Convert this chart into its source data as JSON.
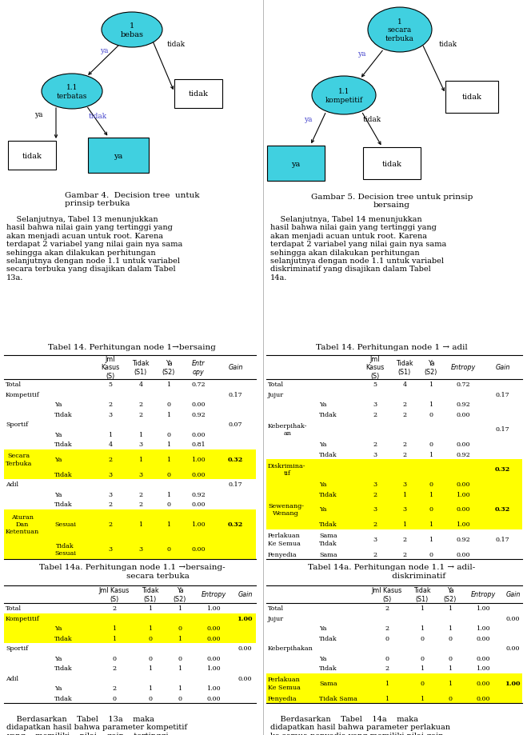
{
  "page_bg": "#ffffff",
  "fig_width": 6.59,
  "fig_height": 9.2,
  "left_table1_rows": [
    {
      "cells": [
        "Total",
        "",
        "5",
        "4",
        "1",
        "0.72",
        ""
      ],
      "highlight": false
    },
    {
      "cells": [
        "Kompetitif",
        "",
        "",
        "",
        "",
        "",
        "0.17"
      ],
      "highlight": false
    },
    {
      "cells": [
        "",
        "Ya",
        "2",
        "2",
        "0",
        "0.00",
        ""
      ],
      "highlight": false
    },
    {
      "cells": [
        "",
        "Tidak",
        "3",
        "2",
        "1",
        "0.92",
        ""
      ],
      "highlight": false
    },
    {
      "cells": [
        "Sportif",
        "",
        "",
        "",
        "",
        "",
        "0.07"
      ],
      "highlight": false
    },
    {
      "cells": [
        "",
        "Ya",
        "1",
        "1",
        "0",
        "0.00",
        ""
      ],
      "highlight": false
    },
    {
      "cells": [
        "",
        "Tidak",
        "4",
        "3",
        "1",
        "0.81",
        ""
      ],
      "highlight": false
    },
    {
      "cells": [
        "Secara\nTerbuka",
        "Ya",
        "2",
        "1",
        "1",
        "1.00",
        "0.32"
      ],
      "highlight": true,
      "gain_bold": true
    },
    {
      "cells": [
        "",
        "Tidak",
        "3",
        "3",
        "0",
        "0.00",
        ""
      ],
      "highlight": true
    },
    {
      "cells": [
        "Adil",
        "",
        "",
        "",
        "",
        "",
        "0.17"
      ],
      "highlight": false
    },
    {
      "cells": [
        "",
        "Ya",
        "3",
        "2",
        "1",
        "0.92",
        ""
      ],
      "highlight": false
    },
    {
      "cells": [
        "",
        "Tidak",
        "2",
        "2",
        "0",
        "0.00",
        ""
      ],
      "highlight": false
    },
    {
      "cells": [
        "Aturan\nDan\nKetentuan",
        "Sesuai",
        "2",
        "1",
        "1",
        "1.00",
        "0.32"
      ],
      "highlight": true,
      "gain_bold": true
    },
    {
      "cells": [
        "",
        "Tidak\nSesuai",
        "3",
        "3",
        "0",
        "0.00",
        ""
      ],
      "highlight": true
    }
  ],
  "left_table2_rows": [
    {
      "cells": [
        "Total",
        "",
        "2",
        "1",
        "1",
        "1.00",
        ""
      ],
      "highlight": false
    },
    {
      "cells": [
        "Kompetitif",
        "",
        "",
        "",
        "",
        "",
        "1.00"
      ],
      "highlight": true,
      "gain_bold": true
    },
    {
      "cells": [
        "",
        "Ya",
        "1",
        "1",
        "0",
        "0.00",
        ""
      ],
      "highlight": true
    },
    {
      "cells": [
        "",
        "Tidak",
        "1",
        "0",
        "1",
        "0.00",
        ""
      ],
      "highlight": true
    },
    {
      "cells": [
        "Sportif",
        "",
        "",
        "",
        "",
        "",
        "0.00"
      ],
      "highlight": false
    },
    {
      "cells": [
        "",
        "Ya",
        "0",
        "0",
        "0",
        "0.00",
        ""
      ],
      "highlight": false
    },
    {
      "cells": [
        "",
        "Tidak",
        "2",
        "1",
        "1",
        "1.00",
        ""
      ],
      "highlight": false
    },
    {
      "cells": [
        "Adil",
        "",
        "",
        "",
        "",
        "",
        "0.00"
      ],
      "highlight": false
    },
    {
      "cells": [
        "",
        "Ya",
        "2",
        "1",
        "1",
        "1.00",
        ""
      ],
      "highlight": false
    },
    {
      "cells": [
        "",
        "Tidak",
        "0",
        "0",
        "0",
        "0.00",
        ""
      ],
      "highlight": false
    }
  ],
  "right_table1_rows": [
    {
      "cells": [
        "Total",
        "",
        "5",
        "4",
        "1",
        "0.72",
        ""
      ],
      "highlight": false
    },
    {
      "cells": [
        "Jujur",
        "",
        "",
        "",
        "",
        "",
        "0.17"
      ],
      "highlight": false
    },
    {
      "cells": [
        "",
        "Ya",
        "3",
        "2",
        "1",
        "0.92",
        ""
      ],
      "highlight": false
    },
    {
      "cells": [
        "",
        "Tidak",
        "2",
        "2",
        "0",
        "0.00",
        ""
      ],
      "highlight": false
    },
    {
      "cells": [
        "Keberpihak-\nan",
        "",
        "",
        "",
        "",
        "",
        "0.17"
      ],
      "highlight": false
    },
    {
      "cells": [
        "",
        "Ya",
        "2",
        "2",
        "0",
        "0.00",
        ""
      ],
      "highlight": false
    },
    {
      "cells": [
        "",
        "Tidak",
        "3",
        "2",
        "1",
        "0.92",
        ""
      ],
      "highlight": false
    },
    {
      "cells": [
        "Diskrimina-\ntif",
        "",
        "",
        "",
        "",
        "",
        "0.32"
      ],
      "highlight": true,
      "gain_bold": true
    },
    {
      "cells": [
        "",
        "Ya",
        "3",
        "3",
        "0",
        "0.00",
        ""
      ],
      "highlight": true
    },
    {
      "cells": [
        "",
        "Tidak",
        "2",
        "1",
        "1",
        "1.00",
        ""
      ],
      "highlight": true
    },
    {
      "cells": [
        "Sewenang-\nWenang",
        "Ya",
        "3",
        "3",
        "0",
        "0.00",
        "0.32"
      ],
      "highlight": true,
      "gain_bold": true
    },
    {
      "cells": [
        "",
        "Tidak",
        "2",
        "1",
        "1",
        "1.00",
        ""
      ],
      "highlight": true
    },
    {
      "cells": [
        "Perlakuan\nKe Semua",
        "Sama\nTidak",
        "3",
        "2",
        "1",
        "0.92",
        "0.17"
      ],
      "highlight": false
    },
    {
      "cells": [
        "Penyedia",
        "Sama",
        "2",
        "2",
        "0",
        "0.00",
        ""
      ],
      "highlight": false
    }
  ],
  "right_table2_rows": [
    {
      "cells": [
        "Total",
        "",
        "2",
        "1",
        "1",
        "1.00",
        ""
      ],
      "highlight": false
    },
    {
      "cells": [
        "Jujur",
        "",
        "",
        "",
        "",
        "",
        "0.00"
      ],
      "highlight": false
    },
    {
      "cells": [
        "",
        "Ya",
        "2",
        "1",
        "1",
        "1.00",
        ""
      ],
      "highlight": false
    },
    {
      "cells": [
        "",
        "Tidak",
        "0",
        "0",
        "0",
        "0.00",
        ""
      ],
      "highlight": false
    },
    {
      "cells": [
        "Keberpihakan",
        "",
        "",
        "",
        "",
        "",
        "0.00"
      ],
      "highlight": false
    },
    {
      "cells": [
        "",
        "Ya",
        "0",
        "0",
        "0",
        "0.00",
        ""
      ],
      "highlight": false
    },
    {
      "cells": [
        "",
        "Tidak",
        "2",
        "1",
        "1",
        "1.00",
        ""
      ],
      "highlight": false
    },
    {
      "cells": [
        "Perlakuan\nKe Semua",
        "Sama",
        "1",
        "0",
        "1",
        "0.00",
        "1.00"
      ],
      "highlight": true,
      "gain_bold": true
    },
    {
      "cells": [
        "Penyedia",
        "Tidak Sama",
        "1",
        "1",
        "0",
        "0.00",
        ""
      ],
      "highlight": true
    }
  ]
}
